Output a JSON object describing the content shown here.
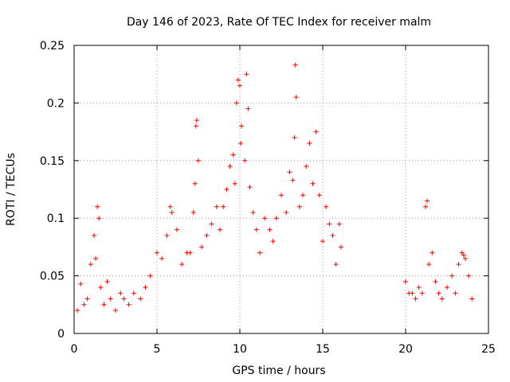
{
  "chart_data": {
    "type": "scatter",
    "title": "Day 146 of 2023, Rate Of TEC Index for receiver malm",
    "xlabel": "GPS time / hours",
    "ylabel": "ROTI / TECUs",
    "xlim": [
      0,
      25
    ],
    "ylim": [
      0,
      0.25
    ],
    "xticks": [
      0,
      5,
      10,
      15,
      20,
      25
    ],
    "yticks": [
      0,
      0.05,
      0.1,
      0.15,
      0.2,
      0.25
    ],
    "xtick_labels": [
      "0",
      "5",
      "10",
      "15",
      "20",
      "25"
    ],
    "ytick_labels": [
      "0",
      "0.05",
      "0.1",
      "0.15",
      "0.2",
      "0.25"
    ],
    "grid": true,
    "marker": "+",
    "color": "#ff0000",
    "series": [
      {
        "x": [
          0.2,
          0.4,
          0.6,
          0.8,
          1.0,
          1.2,
          1.3,
          1.4,
          1.5,
          1.6,
          1.8,
          2.0,
          2.2,
          2.5,
          2.8,
          3.0,
          3.3,
          3.6,
          4.0,
          4.3,
          4.6,
          5.0,
          5.3,
          5.6,
          5.8,
          5.9,
          6.2,
          6.5,
          6.8,
          7.0,
          7.2,
          7.3,
          7.35,
          7.4,
          7.5,
          7.7,
          8.0,
          8.3,
          8.6,
          8.8,
          9.0,
          9.2,
          9.4,
          9.6,
          9.7,
          9.8,
          9.9,
          10.0,
          10.05,
          10.1,
          10.3,
          10.4,
          10.5,
          10.6,
          10.8,
          11.0,
          11.2,
          11.5,
          11.8,
          12.0,
          12.2,
          12.5,
          12.8,
          13.0,
          13.2,
          13.3,
          13.35,
          13.4,
          13.6,
          13.8,
          14.0,
          14.2,
          14.4,
          14.6,
          14.8,
          15.0,
          15.2,
          15.4,
          15.6,
          15.8,
          16.0,
          16.1,
          20.0,
          20.2,
          20.4,
          20.6,
          20.8,
          21.0,
          21.2,
          21.3,
          21.4,
          21.6,
          21.8,
          22.0,
          22.2,
          22.5,
          22.8,
          23.0,
          23.2,
          23.4,
          23.5,
          23.6,
          23.8,
          24.0
        ],
        "y": [
          0.02,
          0.043,
          0.025,
          0.03,
          0.06,
          0.085,
          0.065,
          0.11,
          0.1,
          0.04,
          0.025,
          0.045,
          0.03,
          0.02,
          0.035,
          0.03,
          0.025,
          0.035,
          0.03,
          0.04,
          0.05,
          0.07,
          0.065,
          0.085,
          0.11,
          0.105,
          0.09,
          0.06,
          0.07,
          0.07,
          0.105,
          0.13,
          0.18,
          0.185,
          0.15,
          0.075,
          0.085,
          0.095,
          0.11,
          0.09,
          0.11,
          0.125,
          0.145,
          0.155,
          0.13,
          0.2,
          0.22,
          0.215,
          0.165,
          0.18,
          0.15,
          0.225,
          0.195,
          0.127,
          0.105,
          0.09,
          0.07,
          0.1,
          0.09,
          0.08,
          0.1,
          0.12,
          0.105,
          0.14,
          0.133,
          0.17,
          0.233,
          0.205,
          0.11,
          0.12,
          0.145,
          0.165,
          0.13,
          0.175,
          0.12,
          0.08,
          0.11,
          0.095,
          0.085,
          0.06,
          0.095,
          0.075,
          0.045,
          0.035,
          0.035,
          0.03,
          0.04,
          0.035,
          0.11,
          0.115,
          0.06,
          0.07,
          0.045,
          0.035,
          0.03,
          0.04,
          0.05,
          0.035,
          0.06,
          0.07,
          0.068,
          0.065,
          0.05,
          0.03
        ]
      }
    ]
  }
}
